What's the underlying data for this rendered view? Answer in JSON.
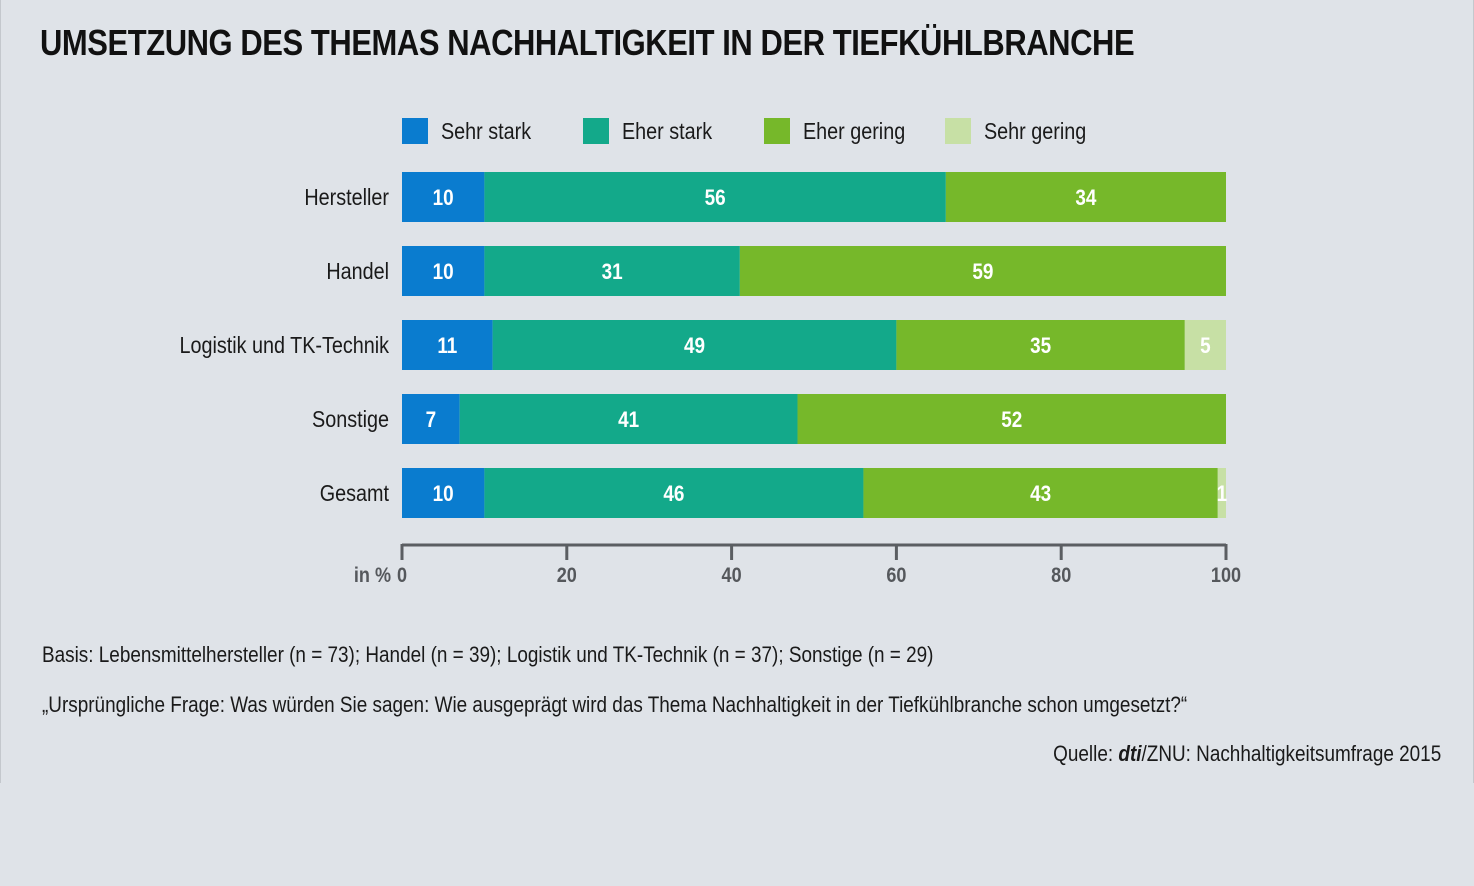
{
  "title": "UMSETZUNG DES THEMAS NACHHALTIGKEIT IN DER TIEFKÜHLBRANCHE",
  "chart_data": {
    "type": "bar",
    "orientation": "horizontal",
    "stacked": true,
    "categories": [
      "Hersteller",
      "Handel",
      "Logistik und TK-Technik",
      "Sonstige",
      "Gesamt"
    ],
    "series": [
      {
        "name": "Sehr stark",
        "color": "#0a7ccf",
        "values": [
          10,
          10,
          11,
          7,
          10
        ]
      },
      {
        "name": "Eher stark",
        "color": "#13a98a",
        "values": [
          56,
          31,
          49,
          41,
          46
        ]
      },
      {
        "name": "Eher gering",
        "color": "#76b82a",
        "values": [
          34,
          59,
          35,
          52,
          43
        ]
      },
      {
        "name": "Sehr gering",
        "color": "#c7e0a5",
        "values": [
          0,
          0,
          5,
          0,
          1
        ]
      }
    ],
    "xlabel": "in %",
    "xlim": [
      0,
      100
    ],
    "xticks": [
      0,
      20,
      40,
      60,
      80,
      100
    ],
    "legend_position": "top",
    "grid": false
  },
  "notes": {
    "basis": "Basis: Lebensmittelhersteller (n = 73); Handel (n = 39);  Logistik und TK-Technik (n = 37); Sonstige (n = 29)",
    "question": "„Ursprüngliche Frage: Was würden Sie sagen: Wie ausgeprägt wird das Thema Nachhaltigkeit in der Tiefkühlbranche schon umgesetzt?“"
  },
  "source": {
    "prefix": "Quelle: ",
    "brand": "dti",
    "suffix": "/ZNU: Nachhaltigkeitsumfrage 2015"
  }
}
